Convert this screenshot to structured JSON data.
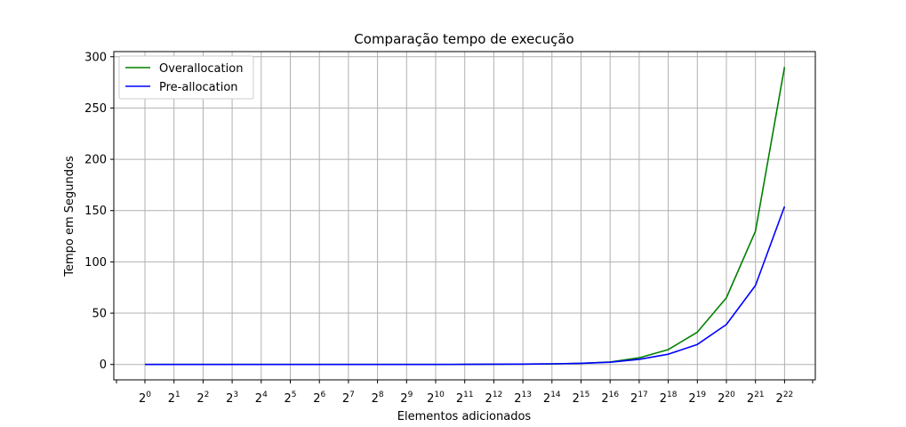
{
  "chart_data": {
    "type": "line",
    "title": "Comparação tempo de execução",
    "xlabel": "Elementos adicionados",
    "ylabel": "Tempo em Segundos",
    "x_base": "2",
    "x_exponents": [
      "0",
      "1",
      "2",
      "3",
      "4",
      "5",
      "6",
      "7",
      "8",
      "9",
      "10",
      "11",
      "12",
      "13",
      "14",
      "15",
      "16",
      "17",
      "18",
      "19",
      "20",
      "21",
      "22"
    ],
    "y_ticks": [
      "0",
      "50",
      "100",
      "150",
      "200",
      "250",
      "300"
    ],
    "ylim": [
      -15,
      305
    ],
    "grid": true,
    "legend_position": "top-left",
    "series": [
      {
        "name": "Overallocation",
        "color": "#008000",
        "values": [
          0,
          0,
          0,
          0,
          0,
          0,
          0,
          0,
          0,
          0,
          0.05,
          0.1,
          0.2,
          0.35,
          0.6,
          1.1,
          2.4,
          6.5,
          14.5,
          31.5,
          65,
          130,
          290
        ]
      },
      {
        "name": "Pre-allocation",
        "color": "#0000ff",
        "values": [
          0,
          0,
          0,
          0,
          0,
          0,
          0,
          0,
          0,
          0,
          0.05,
          0.1,
          0.2,
          0.35,
          0.6,
          1.1,
          2.2,
          5,
          10,
          19.5,
          39,
          77,
          154
        ]
      }
    ]
  }
}
